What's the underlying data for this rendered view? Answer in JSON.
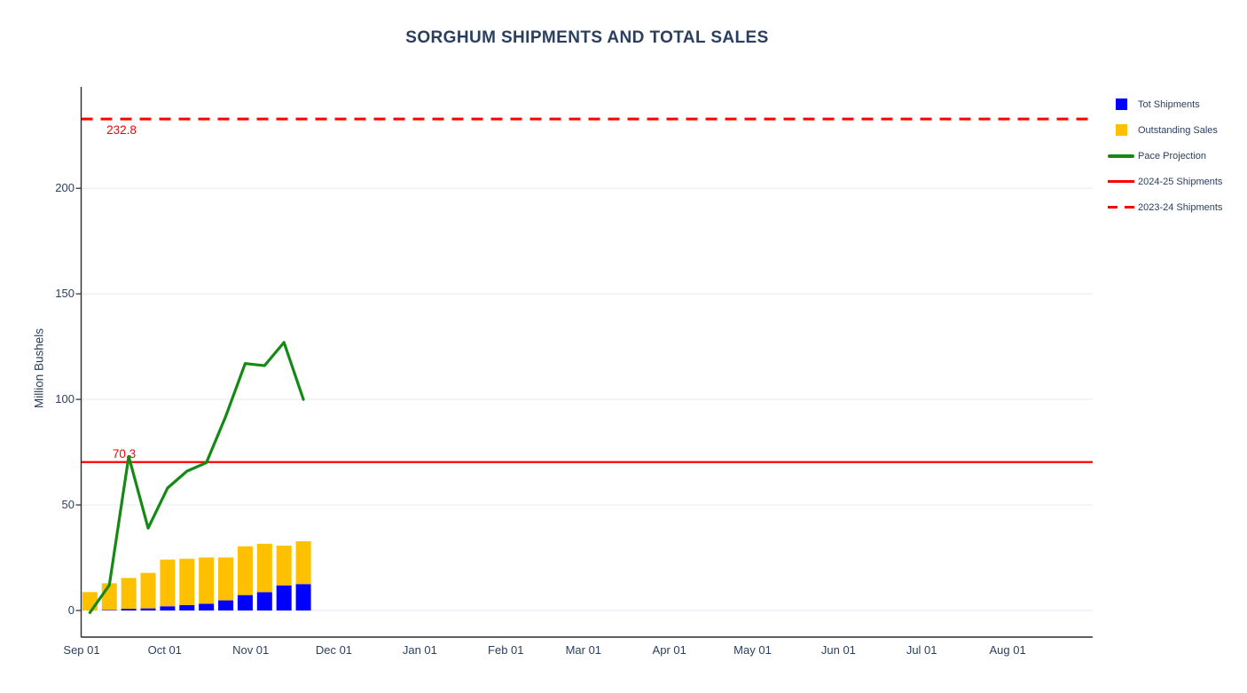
{
  "title": "SORGHUM SHIPMENTS AND TOTAL SALES",
  "chart_data": {
    "type": "bar",
    "bar_mode": "stacked",
    "title": "SORGHUM SHIPMENTS AND TOTAL SALES",
    "xlabel": "",
    "ylabel": "Million Bushels",
    "ylim": [
      -12,
      248
    ],
    "yticks": [
      0,
      50,
      100,
      150,
      200
    ],
    "xticks": [
      "Sep 01",
      "Oct 01",
      "Nov 01",
      "Dec 01",
      "Jan 01",
      "Feb 01",
      "Mar 01",
      "Apr 01",
      "May 01",
      "Jun 01",
      "Jul 01",
      "Aug 01"
    ],
    "xtick_day_offsets": [
      0,
      30,
      61,
      91,
      122,
      153,
      181,
      212,
      242,
      273,
      303,
      334
    ],
    "week_day_offsets": [
      3,
      10,
      17,
      24,
      31,
      38,
      45,
      52,
      59,
      66,
      73,
      80
    ],
    "grid": "horizontal-light",
    "legend_position": "right-outside",
    "series": [
      {
        "name": "Tot Shipments",
        "type": "bar",
        "color": "#0000ff",
        "values": [
          0,
          0.2,
          0.8,
          1.0,
          2.0,
          2.6,
          3.2,
          4.8,
          7.3,
          8.7,
          11.9,
          12.5
        ]
      },
      {
        "name": "Outstanding Sales",
        "type": "bar",
        "color": "#ffc000",
        "values": [
          8.7,
          12.7,
          14.6,
          16.8,
          22.1,
          21.9,
          21.9,
          20.3,
          23.1,
          22.9,
          18.8,
          20.3
        ]
      },
      {
        "name": "Pace Projection",
        "type": "line",
        "color": "#148a14",
        "values": [
          -1,
          12,
          73,
          39,
          58,
          66,
          70,
          92,
          117,
          116,
          127,
          100
        ]
      },
      {
        "name": "2024-25 Shipments",
        "type": "hline",
        "color": "#ff0000",
        "value": 70.3
      },
      {
        "name": "2023-24 Shipments",
        "type": "hline_dashed",
        "color": "#ff0000",
        "value": 232.8
      }
    ],
    "annotations": [
      {
        "text": "232.8",
        "color": "#ff0000",
        "refers_to": "2023-24 Shipments"
      },
      {
        "text": "70.3",
        "color": "#ff0000",
        "refers_to": "2024-25 Shipments"
      }
    ],
    "colors": {
      "text": "#2a3f5f",
      "gridline": "#e8eef6",
      "axis_spine": "#2b2b2b"
    }
  }
}
